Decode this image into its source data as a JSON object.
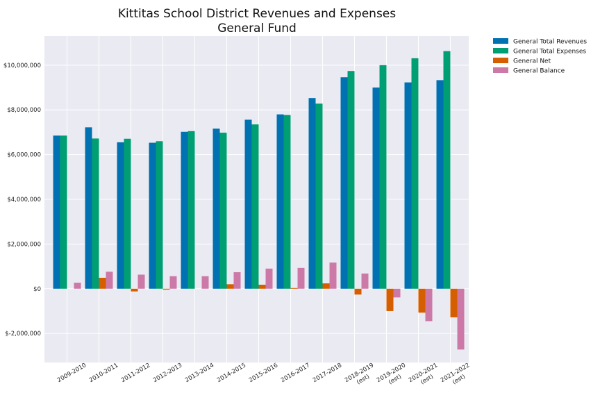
{
  "chart_data": {
    "type": "bar",
    "title": "Kittitas School District Revenues and Expenses",
    "subtitle": "General Fund",
    "xlabel": "",
    "ylabel": "",
    "ylim": [
      -3300000,
      11300000
    ],
    "yticks": [
      "$-2,000,000",
      "$0",
      "$2,000,000",
      "$4,000,000",
      "$6,000,000",
      "$8,000,000",
      "$10,000,000"
    ],
    "ytick_values": [
      -2000000,
      0,
      2000000,
      4000000,
      6000000,
      8000000,
      10000000
    ],
    "categories": [
      [
        "2009-2010"
      ],
      [
        "2010-2011"
      ],
      [
        "2011-2012"
      ],
      [
        "2012-2013"
      ],
      [
        "2013-2014"
      ],
      [
        "2014-2015"
      ],
      [
        "2015-2016"
      ],
      [
        "2016-2017"
      ],
      [
        "2017-2018"
      ],
      [
        "2018-2019",
        "(est)"
      ],
      [
        "2019-2020",
        "(est)"
      ],
      [
        "2020-2021",
        "(est)"
      ],
      [
        "2021-2022",
        "(est)"
      ]
    ],
    "grid": true,
    "legend_position": "outside-top-right",
    "series": [
      {
        "name": "General Total Revenues",
        "color": "#0072b2",
        "values": [
          6850000,
          7220000,
          6550000,
          6530000,
          7020000,
          7160000,
          7560000,
          7800000,
          8530000,
          9460000,
          9000000,
          9230000,
          9330000
        ]
      },
      {
        "name": "General Total Expenses",
        "color": "#009e73",
        "values": [
          6850000,
          6720000,
          6710000,
          6600000,
          7050000,
          6980000,
          7350000,
          7770000,
          8280000,
          9740000,
          10000000,
          10310000,
          10630000
        ]
      },
      {
        "name": "General Net",
        "color": "#d55e00",
        "values": [
          0,
          490000,
          -120000,
          -40000,
          0,
          200000,
          180000,
          30000,
          240000,
          -260000,
          -1000000,
          -1070000,
          -1280000
        ]
      },
      {
        "name": "General Balance",
        "color": "#cc79a7",
        "values": [
          270000,
          760000,
          630000,
          560000,
          560000,
          740000,
          900000,
          930000,
          1170000,
          680000,
          -390000,
          -1450000,
          -2720000
        ]
      }
    ]
  }
}
